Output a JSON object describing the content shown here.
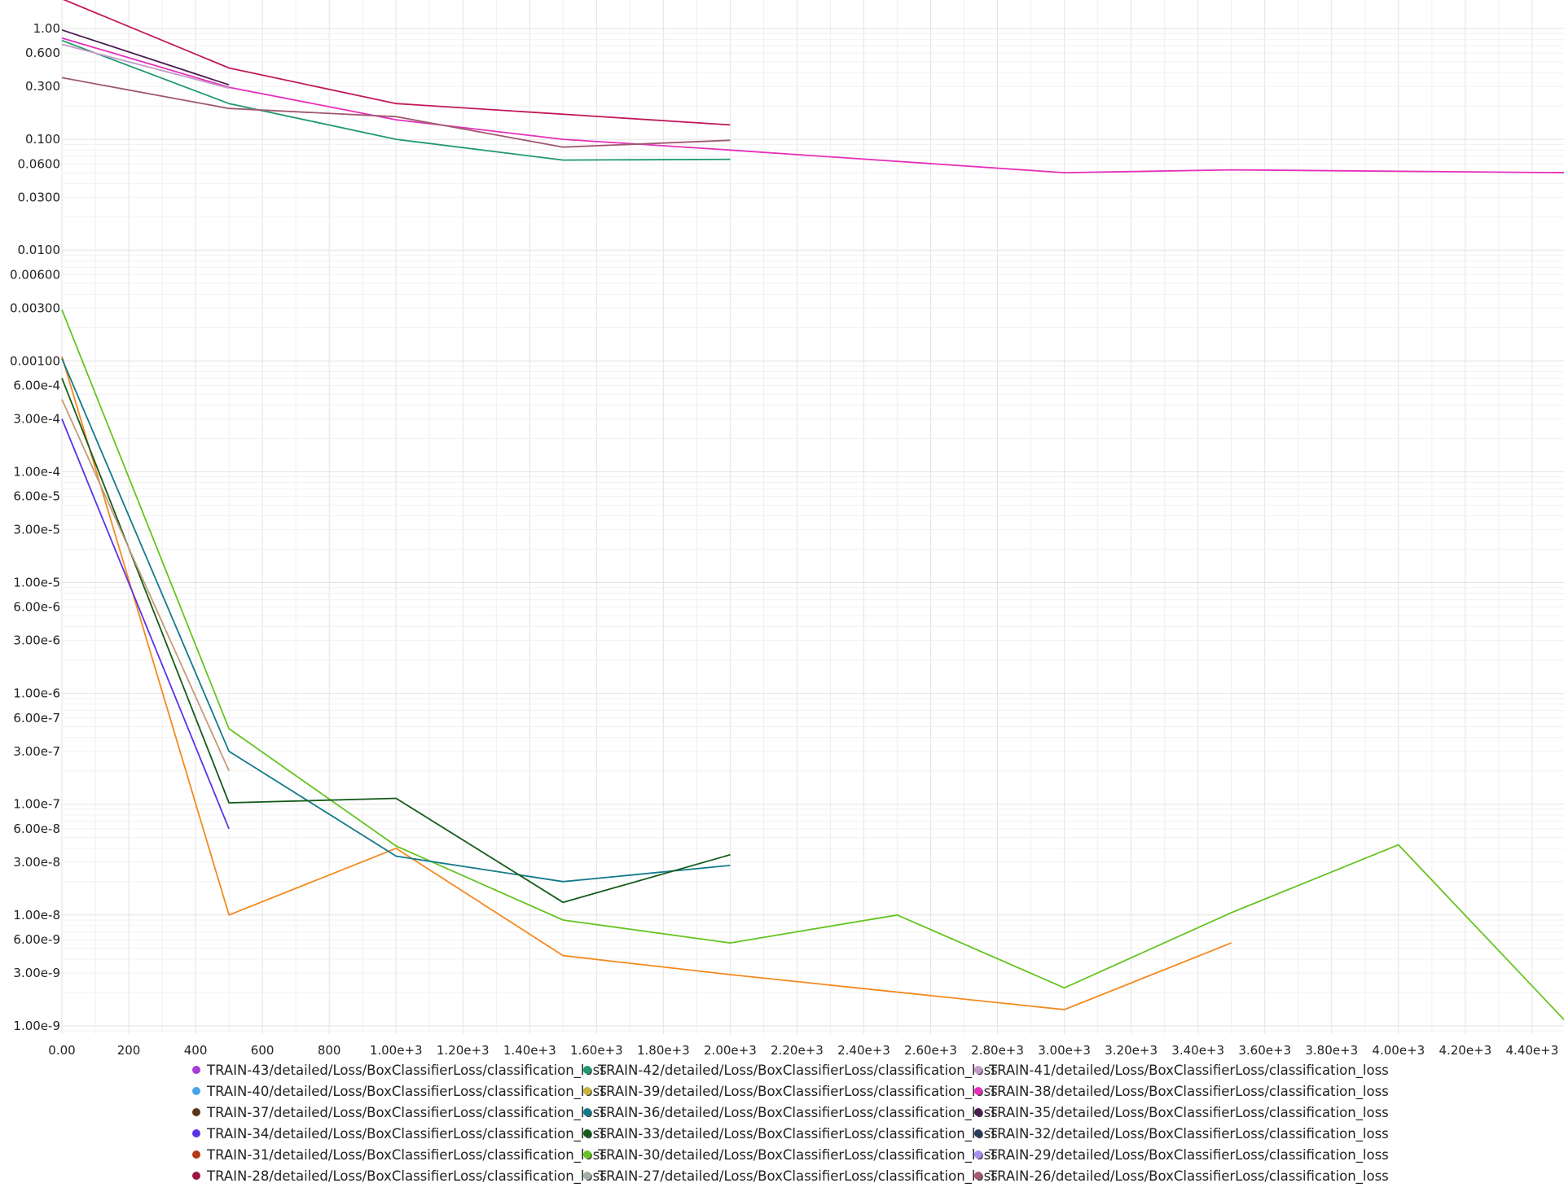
{
  "chart_data": {
    "type": "line",
    "y_scale": "log",
    "grid": true,
    "legend_position": "bottom",
    "xlim": [
      0,
      4500
    ],
    "x_ticks": [
      0,
      200,
      400,
      600,
      800,
      1000,
      1200,
      1400,
      1600,
      1800,
      2000,
      2200,
      2400,
      2600,
      2800,
      3000,
      3200,
      3400,
      3600,
      3800,
      4000,
      4200,
      4400
    ],
    "x_tick_labels": [
      "0.00",
      "200",
      "400",
      "600",
      "800",
      "1.00e+3",
      "1.20e+3",
      "1.40e+3",
      "1.60e+3",
      "1.80e+3",
      "2.00e+3",
      "2.20e+3",
      "2.40e+3",
      "2.60e+3",
      "2.80e+3",
      "3.00e+3",
      "3.20e+3",
      "3.40e+3",
      "3.60e+3",
      "3.80e+3",
      "4.00e+3",
      "4.20e+3",
      "4.40e+3"
    ],
    "y_ticks": [
      1.0,
      0.6,
      0.3,
      0.1,
      0.06,
      0.03,
      0.01,
      0.006,
      0.003,
      0.001,
      0.0006,
      0.0003,
      0.0001,
      6e-05,
      3e-05,
      1e-05,
      6e-06,
      3e-06,
      1e-06,
      6e-07,
      3e-07,
      1e-07,
      6e-08,
      3e-08,
      1e-08,
      6e-09,
      3e-09,
      1e-09
    ],
    "y_tick_labels": [
      "1.00",
      "0.600",
      "0.300",
      "0.100",
      "0.0600",
      "0.0300",
      "0.0100",
      "0.00600",
      "0.00300",
      "0.00100",
      "6.00e-4",
      "3.00e-4",
      "1.00e-4",
      "6.00e-5",
      "3.00e-5",
      "1.00e-5",
      "6.00e-6",
      "3.00e-6",
      "1.00e-6",
      "6.00e-7",
      "3.00e-7",
      "1.00e-7",
      "6.00e-8",
      "3.00e-8",
      "1.00e-8",
      "6.00e-9",
      "3.00e-9",
      "1.00e-9"
    ],
    "legend": [
      {
        "name": "TRAIN-43/detailed/Loss/BoxClassifierLoss/classification_loss",
        "color": "#a93ad6"
      },
      {
        "name": "TRAIN-42/detailed/Loss/BoxClassifierLoss/classification_loss",
        "color": "#1f9a6e"
      },
      {
        "name": "TRAIN-41/detailed/Loss/BoxClassifierLoss/classification_loss",
        "color": "#c39bc9"
      },
      {
        "name": "TRAIN-40/detailed/Loss/BoxClassifierLoss/classification_loss",
        "color": "#4aa3e8"
      },
      {
        "name": "TRAIN-39/detailed/Loss/BoxClassifierLoss/classification_loss",
        "color": "#c9b23a"
      },
      {
        "name": "TRAIN-38/detailed/Loss/BoxClassifierLoss/classification_loss",
        "color": "#e62fba"
      },
      {
        "name": "TRAIN-37/detailed/Loss/BoxClassifierLoss/classification_loss",
        "color": "#5b3518"
      },
      {
        "name": "TRAIN-36/detailed/Loss/BoxClassifierLoss/classification_loss",
        "color": "#137a8a"
      },
      {
        "name": "TRAIN-35/detailed/Loss/BoxClassifierLoss/classification_loss",
        "color": "#4a1f4f"
      },
      {
        "name": "TRAIN-34/detailed/Loss/BoxClassifierLoss/classification_loss",
        "color": "#5a33e8"
      },
      {
        "name": "TRAIN-33/detailed/Loss/BoxClassifierLoss/classification_loss",
        "color": "#145c1a"
      },
      {
        "name": "TRAIN-32/detailed/Loss/BoxClassifierLoss/classification_loss",
        "color": "#2a3d5c"
      },
      {
        "name": "TRAIN-31/detailed/Loss/BoxClassifierLoss/classification_loss",
        "color": "#b23a14"
      },
      {
        "name": "TRAIN-30/detailed/Loss/BoxClassifierLoss/classification_loss",
        "color": "#66c421"
      },
      {
        "name": "TRAIN-29/detailed/Loss/BoxClassifierLoss/classification_loss",
        "color": "#a98ff0"
      },
      {
        "name": "TRAIN-28/detailed/Loss/BoxClassifierLoss/classification_loss",
        "color": "#9c1447"
      },
      {
        "name": "TRAIN-27/detailed/Loss/BoxClassifierLoss/classification_loss",
        "color": "#a3b0a3"
      },
      {
        "name": "TRAIN-26/detailed/Loss/BoxClassifierLoss/classification_loss",
        "color": "#a0596e"
      }
    ],
    "series": [
      {
        "color": "#c2185b",
        "x": [
          0,
          500,
          1000,
          2000
        ],
        "y": [
          1.85,
          0.44,
          0.21,
          0.135
        ]
      },
      {
        "color": "#4a1f4f",
        "x": [
          0,
          500
        ],
        "y": [
          0.97,
          0.31
        ]
      },
      {
        "color": "#e62fba",
        "x": [
          0,
          500,
          1000,
          1500,
          2000,
          3000,
          3500,
          4500
        ],
        "y": [
          0.82,
          0.295,
          0.15,
          0.1,
          0.08,
          0.05,
          0.053,
          0.05
        ]
      },
      {
        "color": "#1f9a6e",
        "x": [
          0,
          500,
          1000,
          1500,
          2000
        ],
        "y": [
          0.78,
          0.21,
          0.1,
          0.065,
          0.066
        ]
      },
      {
        "color": "#c39bc9",
        "x": [
          0,
          500
        ],
        "y": [
          0.72,
          0.29
        ]
      },
      {
        "color": "#a0596e",
        "x": [
          0,
          500,
          1000,
          1500,
          2000
        ],
        "y": [
          0.36,
          0.19,
          0.16,
          0.085,
          0.098
        ]
      },
      {
        "color": "#66c421",
        "x": [
          0,
          500,
          1000,
          1500,
          2000,
          2500,
          3000,
          3500,
          4000,
          4500
        ],
        "y": [
          0.0029,
          4.8e-07,
          4.2e-08,
          9e-09,
          5.6e-09,
          1e-08,
          2.2e-09,
          1.05e-08,
          4.3e-08,
          1.1e-09
        ]
      },
      {
        "color": "#f5891f",
        "x": [
          0,
          500,
          1000,
          1500,
          2000,
          3000,
          3500
        ],
        "y": [
          0.0011,
          1e-08,
          4e-08,
          4.3e-09,
          2.9e-09,
          1.4e-09,
          5.6e-09
        ]
      },
      {
        "color": "#137a8a",
        "x": [
          0,
          500,
          1000,
          1500,
          2000
        ],
        "y": [
          0.00105,
          3e-07,
          3.4e-08,
          2e-08,
          2.8e-08
        ]
      },
      {
        "color": "#145c1a",
        "x": [
          0,
          500,
          1000,
          1500,
          2000
        ],
        "y": [
          0.0007,
          1.03e-07,
          1.13e-07,
          1.3e-08,
          3.5e-08
        ]
      },
      {
        "color": "#c39a7a",
        "x": [
          0,
          500
        ],
        "y": [
          0.00045,
          2e-07
        ]
      },
      {
        "color": "#5a33e8",
        "x": [
          0,
          500
        ],
        "y": [
          0.0003,
          6e-08
        ]
      }
    ]
  }
}
